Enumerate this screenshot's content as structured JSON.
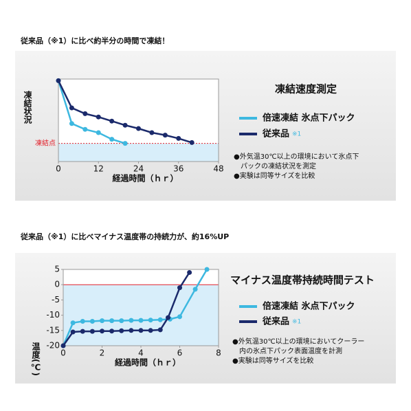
{
  "chart_data": [
    {
      "type": "line",
      "heading": "従来品（※1）に比べ約半分の時間で凍結！",
      "title": "凍結速度測定",
      "xlabel": "経過時間（ｈｒ）",
      "ylabel": "凍結状況",
      "xlim": [
        0,
        48
      ],
      "xticks": [
        0,
        12,
        24,
        36,
        48
      ],
      "ylim": [
        0,
        100
      ],
      "threshold": {
        "value": 22,
        "label": "凍結点"
      },
      "series": [
        {
          "name": "倍速凍結 氷点下パック",
          "color": "#3db8e0",
          "x": [
            0,
            4,
            8,
            12,
            16,
            20
          ],
          "values": [
            98,
            46,
            39,
            35,
            27,
            22
          ]
        },
        {
          "name": "従来品",
          "name_note": "※1",
          "color": "#1b2a6b",
          "x": [
            0,
            4,
            8,
            12,
            16,
            20,
            24,
            28,
            32,
            36,
            40
          ],
          "values": [
            98,
            65,
            58,
            54,
            49,
            44,
            40,
            35,
            32,
            28,
            23
          ]
        }
      ],
      "notes": [
        "●外気温30℃以上の環境において氷点下",
        "パックの凍結状況を測定",
        "●実験は同等サイズを比較"
      ]
    },
    {
      "type": "line",
      "heading": "従来品（※1）に比べマイナス温度帯の持続力が、約16%UP",
      "title": "マイナス温度帯持続時間テスト",
      "xlabel": "経過時間（ｈｒ）",
      "ylabel": "温度(℃)",
      "xlim": [
        0,
        8
      ],
      "xticks": [
        0,
        2,
        4,
        6,
        8
      ],
      "ylim": [
        -20,
        5
      ],
      "yticks": [
        5,
        0,
        -5,
        -10,
        -15,
        -20
      ],
      "threshold": {
        "value": 0
      },
      "series": [
        {
          "name": "倍速凍結 氷点下パック",
          "color": "#3db8e0",
          "x": [
            0,
            0.5,
            1,
            1.5,
            2,
            2.5,
            3,
            3.5,
            4,
            4.5,
            5,
            5.5,
            6,
            6.8,
            7.4
          ],
          "values": [
            -20,
            -12.5,
            -12,
            -12,
            -11.8,
            -11.8,
            -11.8,
            -11.7,
            -11.7,
            -11.6,
            -11.5,
            -11.3,
            -10.5,
            -1.5,
            5
          ]
        },
        {
          "name": "従来品",
          "name_note": "※1",
          "color": "#1b2a6b",
          "x": [
            0,
            0.5,
            1,
            1.5,
            2,
            2.5,
            3,
            3.5,
            4,
            4.5,
            5,
            5.4,
            6,
            6.5
          ],
          "values": [
            -20,
            -15.5,
            -15.3,
            -15.3,
            -15.2,
            -15.2,
            -15.1,
            -15,
            -15,
            -15,
            -14.8,
            -10.8,
            -1,
            4
          ]
        }
      ],
      "notes": [
        "●外気温30℃以上の環境においてクーラー",
        "内の氷点下パック表面温度を計測",
        "●実験は同等サイズを比較"
      ]
    }
  ]
}
